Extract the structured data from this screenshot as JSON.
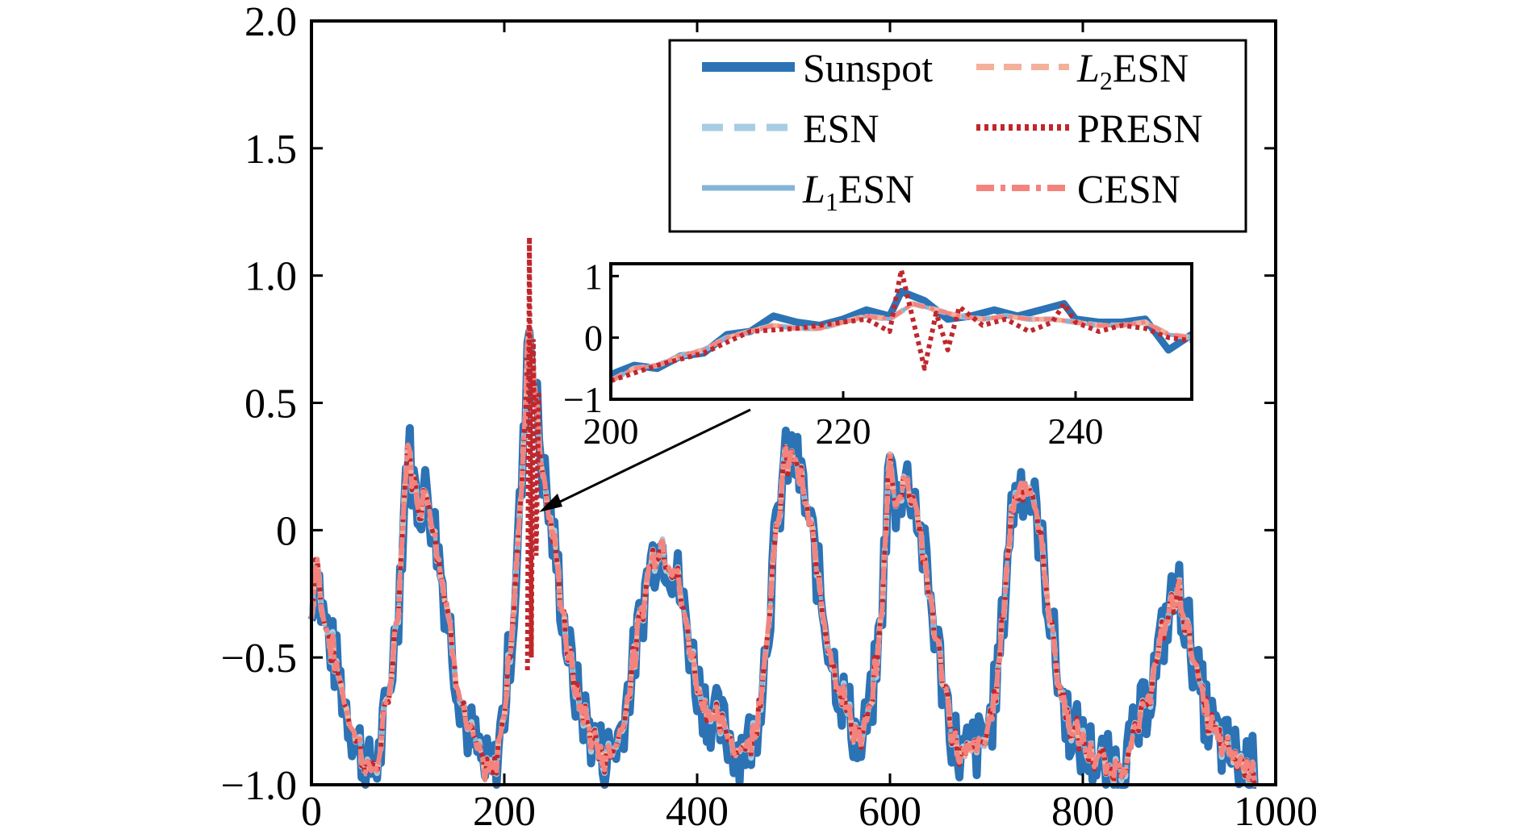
{
  "chart_data": {
    "type": "line",
    "title": "",
    "xlabel": "",
    "ylabel": "",
    "xlim": [
      0,
      1000
    ],
    "ylim": [
      -1.0,
      2.0
    ],
    "x_ticks": [
      0,
      200,
      400,
      600,
      800,
      1000
    ],
    "x_tick_labels": [
      "0",
      "200",
      "400",
      "600",
      "800",
      "1000"
    ],
    "y_ticks": [
      -1.0,
      -0.5,
      0,
      0.5,
      1.0,
      1.5,
      2.0
    ],
    "y_tick_labels": [
      "−1.0",
      "−0.5",
      "0",
      "0.5",
      "1.0",
      "1.5",
      "2.0"
    ],
    "grid": false,
    "legend_position": "top-right",
    "series": [
      {
        "name": "Sunspot",
        "key": "sunspot",
        "color": "#2c73b5",
        "style": "solid-thick",
        "label_prefix": "",
        "label_subscript": "",
        "label_suffix": "Sunspot"
      },
      {
        "name": "ESN",
        "key": "esn",
        "color": "#a7cde2",
        "style": "dashed",
        "label_prefix": "",
        "label_subscript": "",
        "label_suffix": "ESN"
      },
      {
        "name": "L1ESN",
        "key": "l1esn",
        "color": "#86b4d8",
        "style": "solid",
        "label_prefix": "L",
        "label_subscript": "1",
        "label_suffix": "ESN"
      },
      {
        "name": "L2ESN",
        "key": "l2esn",
        "color": "#f4b09a",
        "style": "dashed",
        "label_prefix": "L",
        "label_subscript": "2",
        "label_suffix": "ESN"
      },
      {
        "name": "PRESN",
        "key": "presn",
        "color": "#c0272d",
        "style": "dotted",
        "label_prefix": "",
        "label_subscript": "",
        "label_suffix": "PRESN"
      },
      {
        "name": "CESN",
        "key": "cesn",
        "color": "#f4837e",
        "style": "dashdot",
        "label_prefix": "",
        "label_subscript": "",
        "label_suffix": "CESN"
      }
    ],
    "sunspot_envelope": [
      [
        0,
        -0.35
      ],
      [
        5,
        -0.05
      ],
      [
        10,
        -0.3
      ],
      [
        20,
        -0.45
      ],
      [
        30,
        -0.6
      ],
      [
        40,
        -0.75
      ],
      [
        50,
        -0.85
      ],
      [
        60,
        -0.95
      ],
      [
        70,
        -0.9
      ],
      [
        80,
        -0.65
      ],
      [
        90,
        -0.3
      ],
      [
        100,
        0.35
      ],
      [
        105,
        0.2
      ],
      [
        110,
        0.1
      ],
      [
        120,
        0.15
      ],
      [
        130,
        -0.05
      ],
      [
        140,
        -0.3
      ],
      [
        150,
        -0.55
      ],
      [
        160,
        -0.75
      ],
      [
        170,
        -0.85
      ],
      [
        180,
        -0.95
      ],
      [
        190,
        -0.95
      ],
      [
        200,
        -0.7
      ],
      [
        210,
        -0.3
      ],
      [
        220,
        0.3
      ],
      [
        225,
        0.85
      ],
      [
        232,
        0.55
      ],
      [
        238,
        0.3
      ],
      [
        245,
        0.1
      ],
      [
        255,
        -0.15
      ],
      [
        265,
        -0.45
      ],
      [
        275,
        -0.65
      ],
      [
        285,
        -0.75
      ],
      [
        295,
        -0.85
      ],
      [
        305,
        -0.9
      ],
      [
        320,
        -0.8
      ],
      [
        335,
        -0.5
      ],
      [
        350,
        -0.15
      ],
      [
        360,
        -0.05
      ],
      [
        370,
        -0.1
      ],
      [
        380,
        -0.2
      ],
      [
        390,
        -0.4
      ],
      [
        400,
        -0.6
      ],
      [
        410,
        -0.7
      ],
      [
        420,
        -0.75
      ],
      [
        430,
        -0.8
      ],
      [
        440,
        -0.85
      ],
      [
        450,
        -0.85
      ],
      [
        460,
        -0.8
      ],
      [
        470,
        -0.5
      ],
      [
        480,
        -0.1
      ],
      [
        490,
        0.25
      ],
      [
        500,
        0.3
      ],
      [
        510,
        0.15
      ],
      [
        520,
        -0.05
      ],
      [
        530,
        -0.3
      ],
      [
        540,
        -0.5
      ],
      [
        550,
        -0.65
      ],
      [
        560,
        -0.75
      ],
      [
        570,
        -0.85
      ],
      [
        580,
        -0.7
      ],
      [
        590,
        -0.4
      ],
      [
        600,
        0.3
      ],
      [
        605,
        0.1
      ],
      [
        615,
        0.2
      ],
      [
        625,
        0.15
      ],
      [
        635,
        -0.1
      ],
      [
        645,
        -0.35
      ],
      [
        655,
        -0.6
      ],
      [
        665,
        -0.8
      ],
      [
        675,
        -0.9
      ],
      [
        685,
        -0.85
      ],
      [
        695,
        -0.85
      ],
      [
        705,
        -0.75
      ],
      [
        715,
        -0.45
      ],
      [
        725,
        0.05
      ],
      [
        735,
        0.2
      ],
      [
        745,
        0.15
      ],
      [
        755,
        0.0
      ],
      [
        765,
        -0.3
      ],
      [
        775,
        -0.6
      ],
      [
        785,
        -0.75
      ],
      [
        800,
        -0.85
      ],
      [
        815,
        -0.9
      ],
      [
        830,
        -0.95
      ],
      [
        845,
        -0.9
      ],
      [
        860,
        -0.75
      ],
      [
        875,
        -0.55
      ],
      [
        890,
        -0.3
      ],
      [
        900,
        -0.25
      ],
      [
        910,
        -0.4
      ],
      [
        920,
        -0.6
      ],
      [
        930,
        -0.75
      ],
      [
        945,
        -0.85
      ],
      [
        960,
        -0.9
      ],
      [
        980,
        -0.95
      ]
    ],
    "presn_spike": [
      [
        224,
        -0.55
      ],
      [
        226,
        1.15
      ],
      [
        228,
        -0.5
      ],
      [
        230,
        0.75
      ],
      [
        233,
        -0.1
      ],
      [
        236,
        0.55
      ]
    ],
    "inset": {
      "xlim": [
        200,
        250
      ],
      "ylim": [
        -1,
        1.2
      ],
      "x_ticks": [
        200,
        220,
        240
      ],
      "x_tick_labels": [
        "200",
        "220",
        "240"
      ],
      "y_ticks": [
        -1,
        0,
        1
      ],
      "y_tick_labels": [
        "−1",
        "0",
        "1"
      ],
      "sunspot": [
        [
          200,
          -0.6
        ],
        [
          202,
          -0.45
        ],
        [
          204,
          -0.5
        ],
        [
          206,
          -0.3
        ],
        [
          208,
          -0.25
        ],
        [
          210,
          0.05
        ],
        [
          212,
          0.1
        ],
        [
          214,
          0.35
        ],
        [
          216,
          0.25
        ],
        [
          218,
          0.2
        ],
        [
          220,
          0.3
        ],
        [
          222,
          0.45
        ],
        [
          224,
          0.35
        ],
        [
          225,
          0.75
        ],
        [
          227,
          0.6
        ],
        [
          229,
          0.3
        ],
        [
          231,
          0.35
        ],
        [
          233,
          0.45
        ],
        [
          235,
          0.35
        ],
        [
          237,
          0.45
        ],
        [
          239,
          0.55
        ],
        [
          240,
          0.3
        ],
        [
          242,
          0.25
        ],
        [
          244,
          0.25
        ],
        [
          246,
          0.3
        ],
        [
          248,
          -0.2
        ],
        [
          250,
          0.05
        ]
      ],
      "model": [
        [
          200,
          -0.7
        ],
        [
          202,
          -0.5
        ],
        [
          204,
          -0.45
        ],
        [
          206,
          -0.3
        ],
        [
          208,
          -0.2
        ],
        [
          210,
          0.0
        ],
        [
          212,
          0.1
        ],
        [
          214,
          0.2
        ],
        [
          216,
          0.15
        ],
        [
          218,
          0.15
        ],
        [
          220,
          0.25
        ],
        [
          222,
          0.35
        ],
        [
          224,
          0.3
        ],
        [
          226,
          0.55
        ],
        [
          228,
          0.45
        ],
        [
          230,
          0.35
        ],
        [
          232,
          0.3
        ],
        [
          234,
          0.35
        ],
        [
          236,
          0.3
        ],
        [
          238,
          0.3
        ],
        [
          240,
          0.25
        ],
        [
          242,
          0.2
        ],
        [
          244,
          0.2
        ],
        [
          246,
          0.25
        ],
        [
          248,
          0.05
        ],
        [
          250,
          0.0
        ]
      ],
      "presn": [
        [
          200,
          -0.7
        ],
        [
          204,
          -0.45
        ],
        [
          208,
          -0.25
        ],
        [
          212,
          0.1
        ],
        [
          216,
          0.15
        ],
        [
          220,
          0.25
        ],
        [
          222,
          0.3
        ],
        [
          224,
          0.1
        ],
        [
          225,
          1.1
        ],
        [
          226,
          0.3
        ],
        [
          227,
          -0.5
        ],
        [
          228,
          0.4
        ],
        [
          229,
          -0.2
        ],
        [
          230,
          0.5
        ],
        [
          232,
          0.2
        ],
        [
          234,
          0.3
        ],
        [
          236,
          0.1
        ],
        [
          238,
          0.25
        ],
        [
          239,
          0.55
        ],
        [
          240,
          0.25
        ],
        [
          242,
          0.1
        ],
        [
          244,
          0.2
        ],
        [
          246,
          0.15
        ],
        [
          248,
          0.0
        ],
        [
          250,
          -0.05
        ]
      ]
    }
  }
}
